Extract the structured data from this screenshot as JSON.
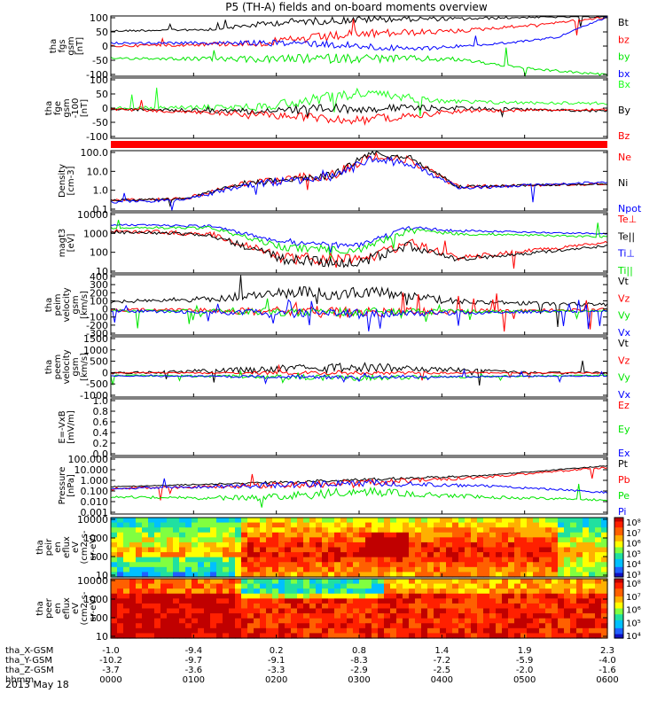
{
  "title": "P5 (TH-A) fields and on-board moments overview",
  "date": "2013 May 18",
  "colors": {
    "black": "#000000",
    "red": "#ff0000",
    "green": "#00e600",
    "blue": "#0000ff",
    "brightgreen": "#20ff20"
  },
  "chart_data": {
    "type": "line",
    "x_axis": {
      "tick_labels": [
        "0000",
        "0100",
        "0200",
        "0300",
        "0400",
        "0500",
        "0600"
      ],
      "ephemeris": [
        {
          "label": "tha_X-GSM",
          "values": [
            "-1.0",
            "-9.4",
            "0.2",
            "0.8",
            "1.4",
            "1.9",
            "2.3"
          ]
        },
        {
          "label": "tha_Y-GSM",
          "values": [
            "-10.2",
            "-9.7",
            "-9.1",
            "-8.3",
            "-7.2",
            "-5.9",
            "-4.0"
          ]
        },
        {
          "label": "tha_Z-GSM",
          "values": [
            "-3.7",
            "-3.6",
            "-3.3",
            "-2.9",
            "-2.5",
            "-2.0",
            "-1.6"
          ]
        },
        {
          "label": "hhmm",
          "values": [
            "0000",
            "0100",
            "0200",
            "0300",
            "0400",
            "0500",
            "0600"
          ]
        }
      ]
    },
    "panels": [
      {
        "ylabel": [
          "tha",
          "fgs",
          "gsm",
          "[nT]"
        ],
        "ticks": [
          "100",
          "50",
          "0",
          "-50",
          "-100"
        ],
        "series": [
          {
            "name": "Bt",
            "color": "black"
          },
          {
            "name": "bz",
            "color": "red"
          },
          {
            "name": "by",
            "color": "green"
          },
          {
            "name": "bx",
            "color": "blue"
          }
        ]
      },
      {
        "ylabel": [
          "tha",
          "fge",
          "gsm",
          "-100",
          "[nT]"
        ],
        "ticks": [
          "100",
          "50",
          "0",
          "-50",
          "-100"
        ],
        "series": [
          {
            "name": "Bx",
            "color": "brightgreen"
          },
          {
            "name": "By",
            "color": "black"
          },
          {
            "name": "Bz",
            "color": "red"
          }
        ]
      },
      {
        "ylabel": [
          "Density",
          "[cm-3]"
        ],
        "ticks": [
          "100.0",
          "10.0",
          "1.0",
          "0.1"
        ],
        "series": [
          {
            "name": "Ne",
            "color": "red"
          },
          {
            "name": "Ni",
            "color": "black"
          },
          {
            "name": "Npot",
            "color": "blue"
          }
        ]
      },
      {
        "ylabel": [
          "magt3",
          "[eV]"
        ],
        "ticks": [
          "10000",
          "1000",
          "100",
          "10"
        ],
        "series": [
          {
            "name": "Te⊥",
            "color": "red"
          },
          {
            "name": "Te||",
            "color": "black"
          },
          {
            "name": "Ti⊥",
            "color": "blue"
          },
          {
            "name": "Ti||",
            "color": "green"
          }
        ]
      },
      {
        "ylabel": [
          "tha",
          "peim",
          "velocity",
          "gsm",
          "[km/s]"
        ],
        "ticks": [
          "400",
          "300",
          "200",
          "100",
          "0",
          "-100",
          "-200",
          "-300"
        ],
        "series": [
          {
            "name": "Vt",
            "color": "black"
          },
          {
            "name": "Vz",
            "color": "red"
          },
          {
            "name": "Vy",
            "color": "green"
          },
          {
            "name": "Vx",
            "color": "blue"
          }
        ]
      },
      {
        "ylabel": [
          "tha",
          "peem",
          "velocity",
          "gsm",
          "[km/s]"
        ],
        "ticks": [
          "1500",
          "1000",
          "500",
          "0",
          "-500",
          "-1000"
        ],
        "series": [
          {
            "name": "Vt",
            "color": "black"
          },
          {
            "name": "Vz",
            "color": "red"
          },
          {
            "name": "Vy",
            "color": "green"
          },
          {
            "name": "Vx",
            "color": "blue"
          }
        ]
      },
      {
        "ylabel": [
          "E=-VxB",
          "[mV/m]"
        ],
        "ticks": [
          "1.0",
          "0.8",
          "0.6",
          "0.4",
          "0.2",
          "0.0"
        ],
        "series": [
          {
            "name": "Ez",
            "color": "red"
          },
          {
            "name": "Ey",
            "color": "green"
          },
          {
            "name": "Ex",
            "color": "blue"
          }
        ]
      },
      {
        "ylabel": [
          "Pressure",
          "[nPa]"
        ],
        "ticks": [
          "100.000",
          "10.000",
          "1.000",
          "0.100",
          "0.010",
          "0.001"
        ],
        "series": [
          {
            "name": "Pt",
            "color": "black"
          },
          {
            "name": "Pb",
            "color": "red"
          },
          {
            "name": "Pe",
            "color": "green"
          },
          {
            "name": "Pi",
            "color": "blue"
          }
        ]
      },
      {
        "ylabel": [
          "tha",
          "peir",
          "en",
          "eflux",
          "eV",
          "(cm2-s-",
          "sr-eV)"
        ],
        "ticks": [
          "10000",
          "1000",
          "100",
          "10"
        ],
        "colorbar": [
          "10⁸",
          "10⁷",
          "10⁶",
          "10⁵",
          "10⁴",
          "10³"
        ]
      },
      {
        "ylabel": [
          "tha",
          "peer",
          "en",
          "eflux",
          "eV",
          "(cm2-s-",
          "sr-eV)"
        ],
        "ticks": [
          "10000",
          "1000",
          "100",
          "10"
        ],
        "colorbar": [
          "10⁸",
          "10⁷",
          "10⁶",
          "10⁵",
          "10⁴"
        ]
      }
    ]
  }
}
